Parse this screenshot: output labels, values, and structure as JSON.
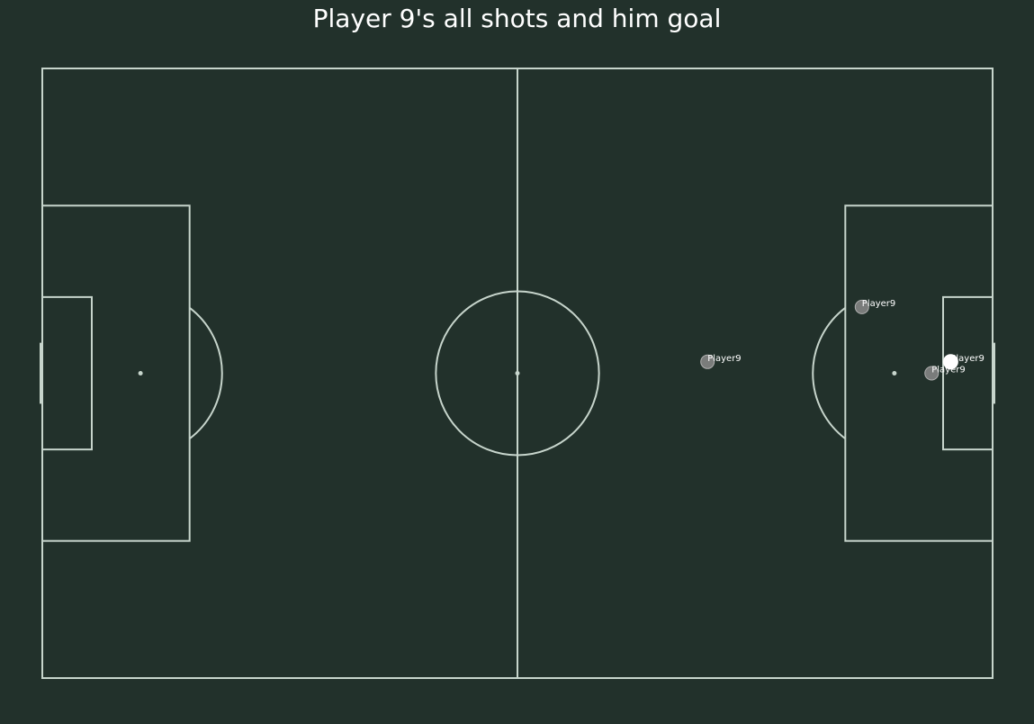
{
  "colors": {
    "background": "#22312b",
    "lines": "#c7d5cc",
    "text": "#ffffff",
    "goal_marker": "#ffffff",
    "shot_marker": "#8a8a8a"
  },
  "chart_data": {
    "type": "scatter",
    "title": "Player 9's all shots and him goal",
    "pitch": {
      "x_range": [
        0,
        120
      ],
      "y_range": [
        0,
        80
      ],
      "orientation": "horizontal",
      "attacking_direction": "right"
    },
    "series": [
      {
        "name": "shots",
        "points": [
          {
            "x": 103.5,
            "y": 31.3,
            "label": "Player9",
            "goal": false
          },
          {
            "x": 84.0,
            "y": 38.5,
            "label": "Player9",
            "goal": false
          },
          {
            "x": 112.3,
            "y": 40.0,
            "label": "Player9",
            "goal": false
          }
        ]
      },
      {
        "name": "goal",
        "points": [
          {
            "x": 114.7,
            "y": 38.5,
            "label": "Player9",
            "goal": true
          }
        ]
      }
    ]
  }
}
